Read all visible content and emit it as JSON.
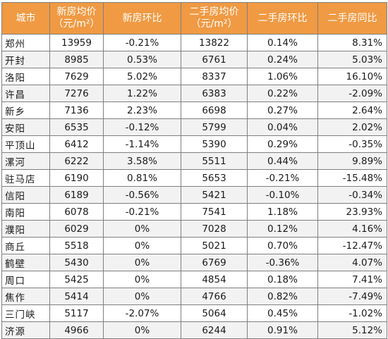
{
  "table": {
    "headers": [
      {
        "line1": "城市",
        "line2": ""
      },
      {
        "line1": "新房均价",
        "line2": "（元/m²）"
      },
      {
        "line1": "新房环比",
        "line2": ""
      },
      {
        "line1": "二手房均价",
        "line2": "（元/m²）"
      },
      {
        "line1": "二手房环比",
        "line2": ""
      },
      {
        "line1": "二手房同比",
        "line2": ""
      }
    ],
    "rows": [
      [
        "郑州",
        "13959",
        "-0.21%",
        "13822",
        "0.14%",
        "8.31%"
      ],
      [
        "开封",
        "8985",
        "0.53%",
        "6761",
        "0.24%",
        "5.03%"
      ],
      [
        "洛阳",
        "7629",
        "5.02%",
        "8337",
        "1.06%",
        "16.10%"
      ],
      [
        "许昌",
        "7276",
        "1.22%",
        "6383",
        "0.22%",
        "-2.09%"
      ],
      [
        "新乡",
        "7136",
        "2.23%",
        "6698",
        "0.27%",
        "2.64%"
      ],
      [
        "安阳",
        "6535",
        "-0.12%",
        "5799",
        "0.04%",
        "2.02%"
      ],
      [
        "平顶山",
        "6412",
        "-1.14%",
        "5390",
        "0.29%",
        "-0.35%"
      ],
      [
        "漯河",
        "6222",
        "3.58%",
        "5511",
        "0.44%",
        "9.89%"
      ],
      [
        "驻马店",
        "6190",
        "0.81%",
        "5653",
        "-0.21%",
        "-15.48%"
      ],
      [
        "信阳",
        "6189",
        "-0.56%",
        "5421",
        "-0.10%",
        "-0.34%"
      ],
      [
        "南阳",
        "6078",
        "-0.21%",
        "7541",
        "1.18%",
        "23.93%"
      ],
      [
        "濮阳",
        "6029",
        "0%",
        "7028",
        "0.12%",
        "4.16%"
      ],
      [
        "商丘",
        "5518",
        "0%",
        "5021",
        "0.70%",
        "-12.47%"
      ],
      [
        "鹤壁",
        "5430",
        "0%",
        "6769",
        "-0.36%",
        "4.07%"
      ],
      [
        "周口",
        "5425",
        "0%",
        "4854",
        "0.18%",
        "7.41%"
      ],
      [
        "焦作",
        "5414",
        "0%",
        "4766",
        "0.82%",
        "-7.49%"
      ],
      [
        "三门峡",
        "5117",
        "-2.07%",
        "5064",
        "0.45%",
        "-1.02%"
      ],
      [
        "济源",
        "4966",
        "0%",
        "6244",
        "0.91%",
        "5.12%"
      ]
    ]
  },
  "colors": {
    "header_bg": "#f09a43",
    "header_text": "#ffffff",
    "row_alt_bg": "#f2f2f2",
    "border": "#7f7f7f"
  }
}
